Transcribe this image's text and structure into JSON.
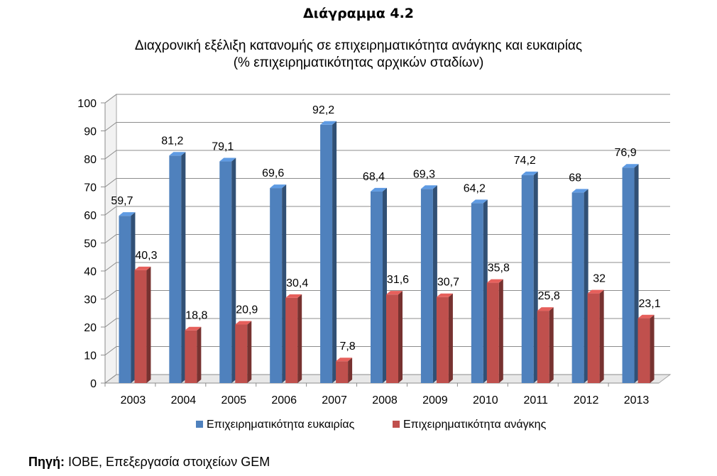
{
  "header": {
    "title": "Διάγραμμα 4.2",
    "subtitle_line1": "Διαχρονική εξέλιξη κατανομής σε επιχειρηματικότητα ανάγκης και ευκαιρίας",
    "subtitle_line2": "(% επιχειρηματικότητας αρχικών σταδίων)"
  },
  "footer": {
    "source_label": "Πηγή:",
    "source_text": " ΙΟΒΕ, Επεξεργασία στοιχείων GEM"
  },
  "chart_data": {
    "type": "bar",
    "title": "Διάγραμμα 4.2",
    "categories": [
      "2003",
      "2004",
      "2005",
      "2006",
      "2007",
      "2008",
      "2009",
      "2010",
      "2011",
      "2012",
      "2013"
    ],
    "series": [
      {
        "name": "Επιχειρηματικότητα ευκαιρίας",
        "color": "#4f81bd",
        "values": [
          59.7,
          81.2,
          79.1,
          69.6,
          92.2,
          68.4,
          69.3,
          64.2,
          74.2,
          68,
          76.9
        ],
        "labels": [
          "59,7",
          "81,2",
          "79,1",
          "69,6",
          "92,2",
          "68,4",
          "69,3",
          "64,2",
          "74,2",
          "68",
          "76,9"
        ]
      },
      {
        "name": "Επιχειρηματικότητα ανάγκης",
        "color": "#c0504d",
        "values": [
          40.3,
          18.8,
          20.9,
          30.4,
          7.8,
          31.6,
          30.7,
          35.8,
          25.8,
          32,
          23.1
        ],
        "labels": [
          "40,3",
          "18,8",
          "20,9",
          "30,4",
          "7,8",
          "31,6",
          "30,7",
          "35,8",
          "25,8",
          "32",
          "23,1"
        ]
      }
    ],
    "yticks": [
      "0",
      "10",
      "20",
      "30",
      "40",
      "50",
      "60",
      "70",
      "80",
      "90",
      "100"
    ],
    "ylim": [
      0,
      100
    ],
    "grid": true,
    "legend_position": "bottom"
  }
}
